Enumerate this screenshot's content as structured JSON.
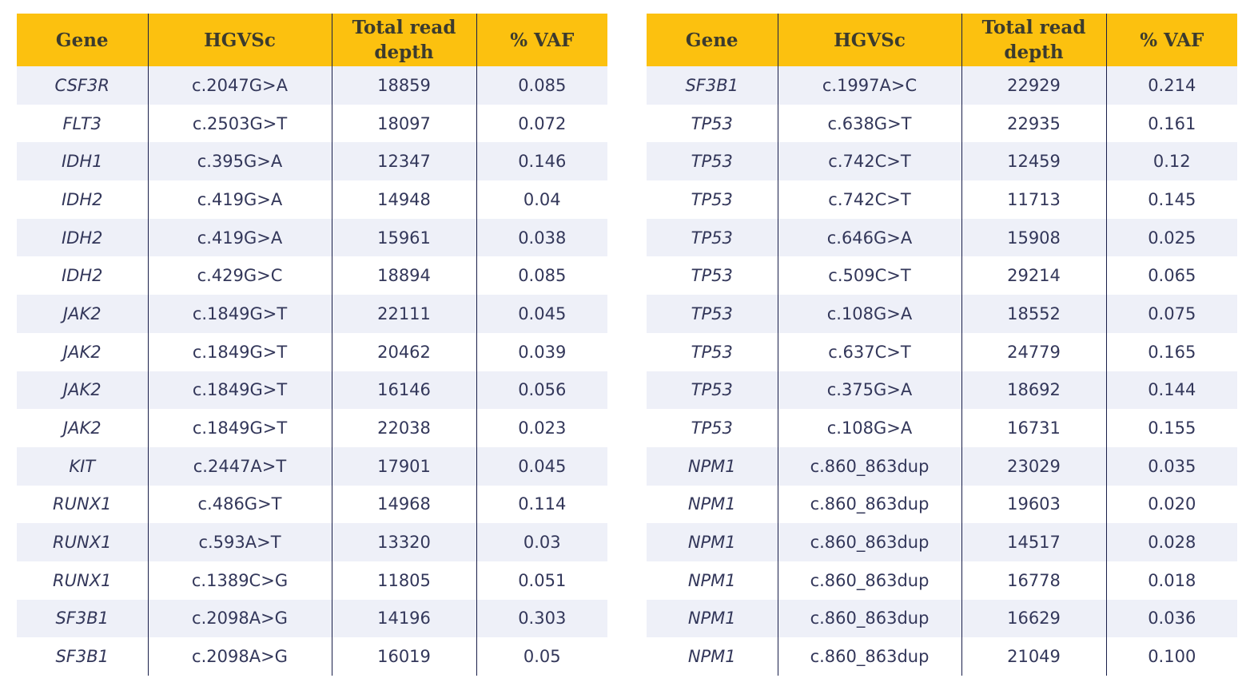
{
  "headers": {
    "gene": "Gene",
    "hgvsc": "HGVSc",
    "depth": "Total read depth",
    "vaf": "% VAF"
  },
  "left_table": [
    {
      "gene": "CSF3R",
      "hgvsc": "c.2047G>A",
      "depth": "18859",
      "vaf": "0.085"
    },
    {
      "gene": "FLT3",
      "hgvsc": "c.2503G>T",
      "depth": "18097",
      "vaf": "0.072"
    },
    {
      "gene": "IDH1",
      "hgvsc": "c.395G>A",
      "depth": "12347",
      "vaf": "0.146"
    },
    {
      "gene": "IDH2",
      "hgvsc": "c.419G>A",
      "depth": "14948",
      "vaf": "0.04"
    },
    {
      "gene": "IDH2",
      "hgvsc": "c.419G>A",
      "depth": "15961",
      "vaf": "0.038"
    },
    {
      "gene": "IDH2",
      "hgvsc": "c.429G>C",
      "depth": "18894",
      "vaf": "0.085"
    },
    {
      "gene": "JAK2",
      "hgvsc": "c.1849G>T",
      "depth": "22111",
      "vaf": "0.045"
    },
    {
      "gene": "JAK2",
      "hgvsc": "c.1849G>T",
      "depth": "20462",
      "vaf": "0.039"
    },
    {
      "gene": "JAK2",
      "hgvsc": "c.1849G>T",
      "depth": "16146",
      "vaf": "0.056"
    },
    {
      "gene": "JAK2",
      "hgvsc": "c.1849G>T",
      "depth": "22038",
      "vaf": "0.023"
    },
    {
      "gene": "KIT",
      "hgvsc": "c.2447A>T",
      "depth": "17901",
      "vaf": "0.045"
    },
    {
      "gene": "RUNX1",
      "hgvsc": "c.486G>T",
      "depth": "14968",
      "vaf": "0.114"
    },
    {
      "gene": "RUNX1",
      "hgvsc": "c.593A>T",
      "depth": "13320",
      "vaf": "0.03"
    },
    {
      "gene": "RUNX1",
      "hgvsc": "c.1389C>G",
      "depth": "11805",
      "vaf": "0.051"
    },
    {
      "gene": "SF3B1",
      "hgvsc": "c.2098A>G",
      "depth": "14196",
      "vaf": "0.303"
    },
    {
      "gene": "SF3B1",
      "hgvsc": "c.2098A>G",
      "depth": "16019",
      "vaf": "0.05"
    }
  ],
  "right_table": [
    {
      "gene": "SF3B1",
      "hgvsc": "c.1997A>C",
      "depth": "22929",
      "vaf": "0.214"
    },
    {
      "gene": "TP53",
      "hgvsc": "c.638G>T",
      "depth": "22935",
      "vaf": "0.161"
    },
    {
      "gene": "TP53",
      "hgvsc": "c.742C>T",
      "depth": "12459",
      "vaf": "0.12"
    },
    {
      "gene": "TP53",
      "hgvsc": "c.742C>T",
      "depth": "11713",
      "vaf": "0.145"
    },
    {
      "gene": "TP53",
      "hgvsc": "c.646G>A",
      "depth": "15908",
      "vaf": "0.025"
    },
    {
      "gene": "TP53",
      "hgvsc": "c.509C>T",
      "depth": "29214",
      "vaf": "0.065"
    },
    {
      "gene": "TP53",
      "hgvsc": "c.108G>A",
      "depth": "18552",
      "vaf": "0.075"
    },
    {
      "gene": "TP53",
      "hgvsc": "c.637C>T",
      "depth": "24779",
      "vaf": "0.165"
    },
    {
      "gene": "TP53",
      "hgvsc": "c.375G>A",
      "depth": "18692",
      "vaf": "0.144"
    },
    {
      "gene": "TP53",
      "hgvsc": "c.108G>A",
      "depth": "16731",
      "vaf": "0.155"
    },
    {
      "gene": "NPM1",
      "hgvsc": "c.860_863dup",
      "depth": "23029",
      "vaf": "0.035"
    },
    {
      "gene": "NPM1",
      "hgvsc": "c.860_863dup",
      "depth": "19603",
      "vaf": "0.020"
    },
    {
      "gene": "NPM1",
      "hgvsc": "c.860_863dup",
      "depth": "14517",
      "vaf": "0.028"
    },
    {
      "gene": "NPM1",
      "hgvsc": "c.860_863dup",
      "depth": "16778",
      "vaf": "0.018"
    },
    {
      "gene": "NPM1",
      "hgvsc": "c.860_863dup",
      "depth": "16629",
      "vaf": "0.036"
    },
    {
      "gene": "NPM1",
      "hgvsc": "c.860_863dup",
      "depth": "21049",
      "vaf": "0.100"
    }
  ],
  "colors": {
    "header_background": "#fcc10f",
    "header_text": "#3c3b2e",
    "row_stripe": "#eef0f8",
    "body_text": "#33375a",
    "divider": "#1a1f4a"
  }
}
